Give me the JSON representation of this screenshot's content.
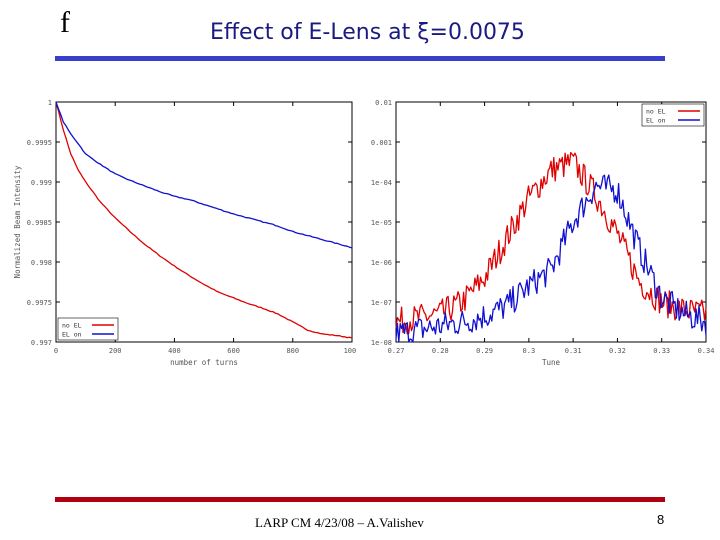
{
  "slide": {
    "corner_glyph": "f",
    "title": "Effect of E-Lens at ξ=0.0075",
    "footer": "LARP CM 4/23/08 – A.Valishev",
    "page_number": "8",
    "colors": {
      "title": "#1a1a80",
      "rule_top": "#3b3ec9",
      "rule_bottom": "#b00010",
      "red": "#e00000",
      "blue": "#1010d0"
    }
  },
  "chart_data": [
    {
      "type": "line",
      "title": "",
      "xlabel": "number of turns",
      "ylabel": "Normalized Beam Intensity",
      "xlim": [
        0,
        1000
      ],
      "ylim": [
        0.997,
        1.0
      ],
      "x_ticks": [
        "0",
        "200",
        "400",
        "600",
        "800",
        "1000"
      ],
      "y_ticks": [
        "0.997",
        "0.9975",
        "0.998",
        "0.9985",
        "0.999",
        "0.9995",
        "1"
      ],
      "legend": {
        "position": "bottom-left",
        "entries": [
          "no EL",
          "EL on"
        ]
      },
      "x": [
        0,
        25,
        50,
        75,
        100,
        150,
        200,
        250,
        300,
        350,
        400,
        450,
        500,
        550,
        600,
        650,
        700,
        750,
        800,
        850,
        900,
        950,
        1000
      ],
      "series": [
        {
          "name": "no EL",
          "color": "#e00000",
          "values": [
            1.0,
            0.99965,
            0.99935,
            0.99915,
            0.999,
            0.99875,
            0.99855,
            0.99838,
            0.99822,
            0.99808,
            0.99795,
            0.99783,
            0.99772,
            0.99762,
            0.99755,
            0.99748,
            0.99742,
            0.99735,
            0.99725,
            0.99715,
            0.9971,
            0.99708,
            0.99705
          ]
        },
        {
          "name": "EL on",
          "color": "#1010d0",
          "values": [
            1.0,
            0.99975,
            0.9996,
            0.99948,
            0.99935,
            0.99922,
            0.9991,
            0.99902,
            0.99895,
            0.99888,
            0.99882,
            0.99878,
            0.99872,
            0.99866,
            0.9986,
            0.99855,
            0.9985,
            0.99845,
            0.99838,
            0.99833,
            0.99828,
            0.99823,
            0.99818
          ]
        }
      ]
    },
    {
      "type": "line",
      "title": "",
      "xlabel": "Tune",
      "ylabel": "",
      "xlim": [
        0.27,
        0.34
      ],
      "ylim": [
        "1e-8",
        "0.01"
      ],
      "y_scale": "log",
      "ylim_exponents": [
        -8,
        -2
      ],
      "x_ticks": [
        "0.27",
        "0.28",
        "0.29",
        "0.3",
        "0.31",
        "0.32",
        "0.33",
        "0.34"
      ],
      "y_ticks": [
        "1e-08",
        "1e-07",
        "1e-06",
        "1e-05",
        "1e-04",
        "0.001",
        "0.01"
      ],
      "legend": {
        "position": "top-right",
        "entries": [
          "no EL",
          "EL on"
        ]
      },
      "x": [
        0.27,
        0.275,
        0.28,
        0.285,
        0.29,
        0.295,
        0.3,
        0.305,
        0.31,
        0.315,
        0.32,
        0.325,
        0.33,
        0.335,
        0.34
      ],
      "series": [
        {
          "name": "no EL",
          "color": "#e00000",
          "log10_values": [
            -7.5,
            -7.4,
            -7.3,
            -7.0,
            -6.4,
            -5.4,
            -4.4,
            -3.7,
            -3.5,
            -4.3,
            -5.3,
            -6.5,
            -7.0,
            -7.2,
            -7.3
          ]
        },
        {
          "name": "EL on",
          "color": "#1010d0",
          "log10_values": [
            -7.8,
            -7.7,
            -7.6,
            -7.5,
            -7.35,
            -7.1,
            -6.6,
            -6.2,
            -5.0,
            -4.1,
            -4.2,
            -5.7,
            -6.9,
            -7.3,
            -7.5
          ]
        }
      ]
    }
  ]
}
